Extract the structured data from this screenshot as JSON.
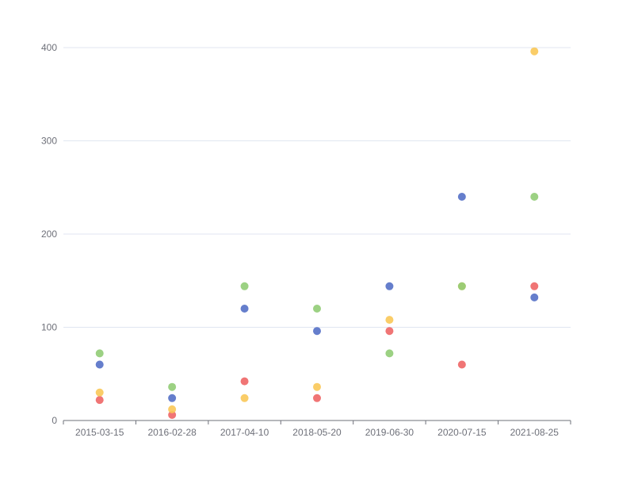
{
  "chart_data": {
    "type": "scatter",
    "categories": [
      "2015-03-15",
      "2016-02-28",
      "2017-04-10",
      "2018-05-20",
      "2019-06-30",
      "2020-07-15",
      "2021-08-25"
    ],
    "ylim": [
      0,
      400
    ],
    "yticks": [
      0,
      100,
      200,
      300,
      400
    ],
    "grid": true,
    "legend": "none",
    "series": [
      {
        "color": "#ee6666",
        "values": [
          22,
          6,
          42,
          24,
          96,
          60,
          144
        ]
      },
      {
        "color": "#fac858",
        "values": [
          30,
          12,
          24,
          36,
          108,
          144,
          396
        ]
      },
      {
        "color": "#5470c6",
        "values": [
          60,
          24,
          120,
          96,
          144,
          240,
          132
        ]
      },
      {
        "color": "#91cc75",
        "values": [
          72,
          36,
          144,
          120,
          72,
          144,
          240
        ]
      }
    ],
    "title": "",
    "xlabel": "",
    "ylabel": ""
  }
}
